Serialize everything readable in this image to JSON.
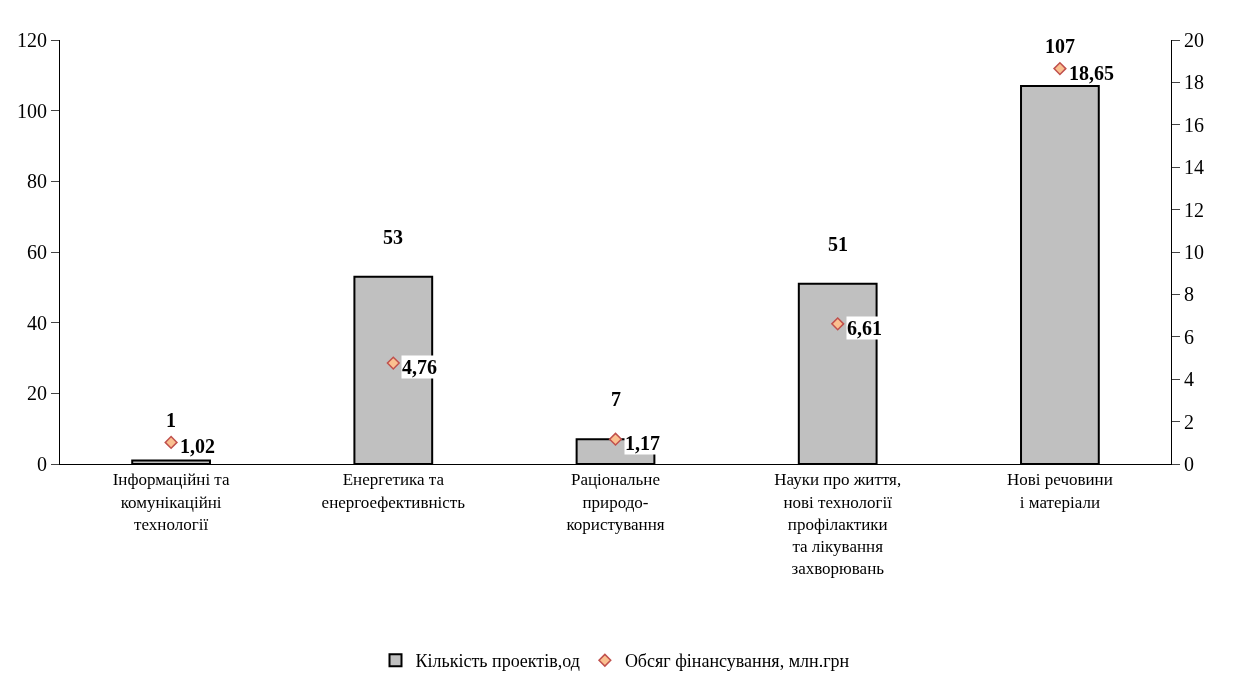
{
  "chart_data": {
    "type": "bar",
    "categories": [
      "Інформаційні та\nкомунікаційні\nтехнології",
      "Енергетика та\nенергоефективність",
      "Раціональне\nприродо-\nкористування",
      "Науки про життя,\nнові технології\nпрофілактики\nта лікування\nзахворювань",
      "Нові речовини\nі матеріали"
    ],
    "series": [
      {
        "name": "Кількість проектів,од",
        "color": "#c0c0c0",
        "values": [
          1,
          53,
          7,
          51,
          107
        ],
        "value_labels": [
          "1",
          "53",
          "7",
          "51",
          "107"
        ]
      },
      {
        "name": "Обсяг фінансування, млн.грн",
        "type": "scatter",
        "axis": "y2",
        "color": "#fac090",
        "marker": "diamond",
        "values": [
          1.02,
          4.76,
          1.17,
          6.61,
          18.65
        ],
        "value_labels": [
          "1,02",
          "4,76",
          "1,17",
          "6,61",
          "18,65"
        ]
      }
    ],
    "ylim": [
      0,
      120
    ],
    "yticks": [
      0,
      20,
      40,
      60,
      80,
      100,
      120
    ],
    "y2lim": [
      0,
      20
    ],
    "y2ticks": [
      0,
      2,
      4,
      6,
      8,
      10,
      12,
      14,
      16,
      18,
      20
    ],
    "grid": false,
    "legend": "bottom"
  }
}
